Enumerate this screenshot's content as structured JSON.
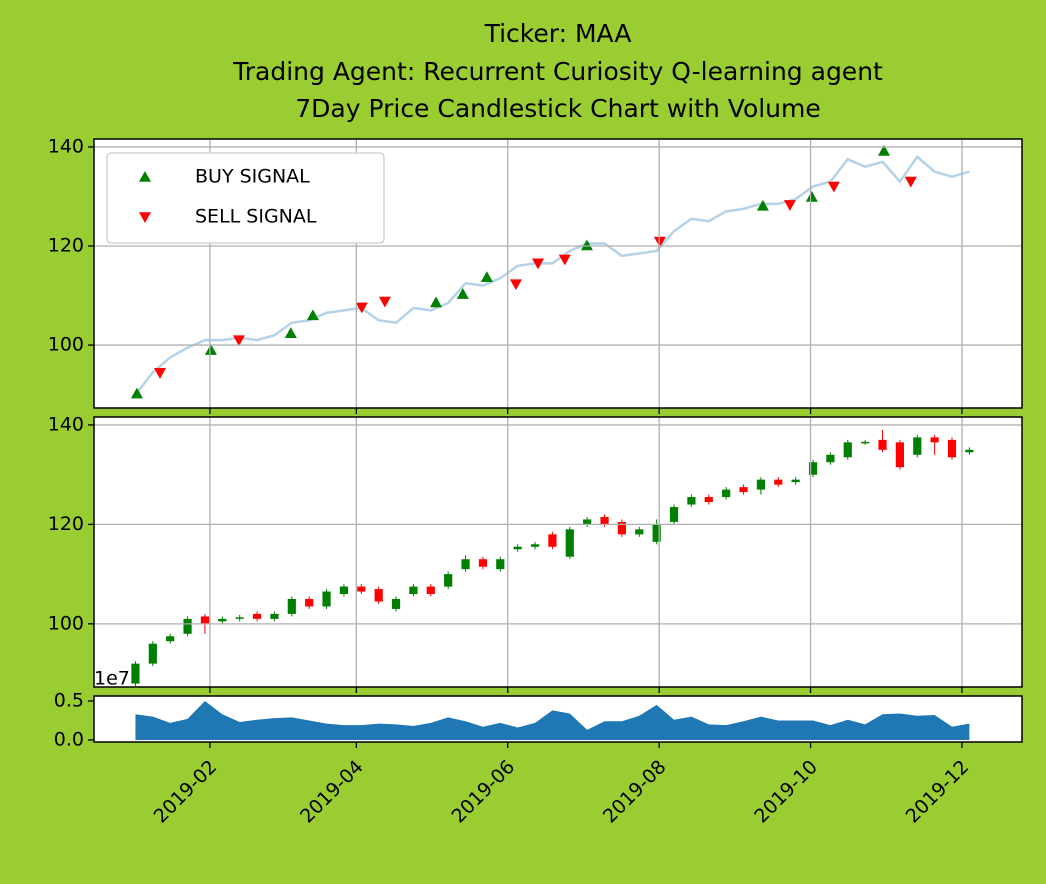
{
  "chart_data": {
    "type": "candlestick",
    "title": [
      "Ticker: MAA",
      "Trading Agent: Recurrent Curiosity Q-learning agent",
      "7Day Price Candlestick Chart with Volume"
    ],
    "x": [
      1,
      8,
      15,
      22,
      29,
      36,
      43,
      50,
      57,
      64,
      71,
      78,
      85,
      92,
      99,
      106,
      113,
      120,
      127,
      134,
      141,
      148,
      155,
      162,
      169,
      176,
      183,
      190,
      197,
      204,
      211,
      218,
      225,
      232,
      239,
      246,
      253,
      260,
      267,
      274,
      281,
      288,
      295,
      302,
      309,
      316,
      323,
      330,
      337
    ],
    "xlim": [
      -15.7,
      358.2
    ],
    "xticks": [
      {
        "value": 31,
        "label": "2019-02"
      },
      {
        "value": 90,
        "label": "2019-04"
      },
      {
        "value": 151,
        "label": "2019-06"
      },
      {
        "value": 212,
        "label": "2019-08"
      },
      {
        "value": 273,
        "label": "2019-10"
      },
      {
        "value": 334,
        "label": "2019-12"
      }
    ],
    "grid": true,
    "price": {
      "color": "#b4d2e8",
      "values": [
        90,
        94.5,
        97.5,
        99.5,
        101,
        101,
        101.5,
        101,
        102,
        104.5,
        105,
        106.5,
        107,
        107.5,
        105,
        104.5,
        107.5,
        107,
        108.5,
        112.5,
        112,
        113.5,
        116,
        116.5,
        116.5,
        119,
        120.5,
        120.5,
        118,
        118.5,
        119,
        123,
        125.5,
        125,
        127,
        127.5,
        128.5,
        128.5,
        129.5,
        132,
        133,
        137.5,
        136,
        137,
        133,
        138,
        135,
        134,
        135
      ],
      "ylim": [
        87.3,
        141.6
      ],
      "yticks": [
        100,
        120,
        140
      ],
      "legend": "upper left",
      "signals": [
        {
          "name": "BUY SIGNAL",
          "color": "#008000",
          "marker": "^",
          "x": [
            1.6,
            31.4,
            63.6,
            72.5,
            122.1,
            132.9,
            142.6,
            182.9,
            253.8,
            273.5,
            302.6
          ],
          "values": [
            90.2,
            99,
            102.4,
            106,
            108.6,
            110.3,
            113.7,
            120.1,
            128.1,
            129.9,
            139.2
          ]
        },
        {
          "name": "SELL SIGNAL",
          "color": "#ff0000",
          "marker": "v",
          "x": [
            10.9,
            42.7,
            92.2,
            101.5,
            154.3,
            163.2,
            174,
            212.3,
            264.7,
            282.4,
            313.4
          ],
          "values": [
            94.4,
            101,
            107.6,
            108.8,
            112.3,
            116.5,
            117.3,
            120.9,
            128.3,
            132,
            133
          ]
        }
      ]
    },
    "candles": {
      "up_color": "#008000",
      "down_color": "#ff0000",
      "open": [
        88,
        92,
        96.5,
        98,
        101.5,
        100.5,
        101,
        102,
        101,
        102,
        105,
        103.5,
        106,
        107.5,
        107,
        103,
        106,
        107.5,
        107.5,
        111,
        113,
        111,
        115,
        115.5,
        118,
        113.5,
        120,
        121.5,
        120.5,
        118,
        116.5,
        120.5,
        124,
        125.5,
        125.5,
        127.5,
        127,
        129,
        128.5,
        130,
        132.5,
        133.5,
        136.5,
        137,
        136.5,
        134,
        137.5,
        137,
        134.5
      ],
      "high": [
        92.5,
        96.5,
        98,
        101.5,
        102,
        101.5,
        101.8,
        102.5,
        102.5,
        105.5,
        105.5,
        107,
        108,
        108,
        107.5,
        105.5,
        108,
        108,
        110.5,
        113.8,
        113.5,
        113.5,
        116,
        116.5,
        118.5,
        119.5,
        121.5,
        122,
        121,
        119.5,
        121,
        124,
        126,
        126,
        127.5,
        128,
        129.5,
        129.5,
        129.5,
        133,
        134.5,
        137,
        137,
        139,
        137,
        138,
        138,
        137.5,
        135.5
      ],
      "low": [
        87.5,
        91.5,
        96,
        97.5,
        98,
        100,
        100.5,
        100.5,
        100.5,
        101.5,
        103,
        103,
        105.5,
        106,
        104,
        102.5,
        105.5,
        105.5,
        107,
        110.5,
        111,
        110.5,
        114.5,
        115,
        115,
        113,
        119.5,
        119.5,
        117.5,
        117.5,
        116,
        120,
        123.5,
        124,
        125,
        126,
        126,
        127.5,
        128,
        129.5,
        132,
        133,
        136,
        134.5,
        131,
        133.5,
        134,
        133,
        134
      ],
      "close": [
        92,
        96,
        97.5,
        101,
        100,
        101,
        101.3,
        101,
        102,
        105,
        103.5,
        106.5,
        107.5,
        106.5,
        104.5,
        105,
        107.5,
        106,
        110,
        113,
        111.5,
        113,
        115.5,
        116,
        115.5,
        119,
        121,
        120,
        118,
        119,
        120,
        123.5,
        125.5,
        124.5,
        127,
        126.5,
        129,
        128,
        129,
        132.5,
        134,
        136.5,
        136.6,
        135,
        131.5,
        137.5,
        136.5,
        133.5,
        135
      ],
      "ylim": [
        87.3,
        141.6
      ],
      "yticks": [
        100,
        120,
        140
      ]
    },
    "volume": {
      "color": "#1f77b4",
      "offset_label": "1e7",
      "values": [
        0.33,
        0.3,
        0.22,
        0.27,
        0.5,
        0.33,
        0.23,
        0.26,
        0.28,
        0.29,
        0.25,
        0.21,
        0.19,
        0.19,
        0.21,
        0.2,
        0.18,
        0.22,
        0.29,
        0.24,
        0.17,
        0.22,
        0.16,
        0.22,
        0.38,
        0.34,
        0.13,
        0.24,
        0.24,
        0.31,
        0.45,
        0.26,
        0.3,
        0.2,
        0.19,
        0.24,
        0.3,
        0.25,
        0.25,
        0.25,
        0.19,
        0.26,
        0.2,
        0.33,
        0.34,
        0.31,
        0.32,
        0.17,
        0.21
      ],
      "ylim": [
        -0.026,
        0.564
      ],
      "yticks": [
        {
          "value": 0,
          "label": "0.0"
        },
        0.5
      ]
    }
  }
}
